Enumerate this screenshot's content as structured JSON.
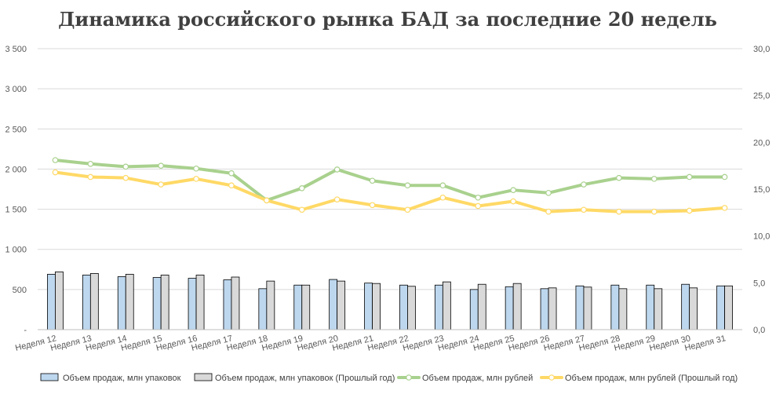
{
  "chart_data": {
    "type": "bar",
    "title": "Динамика российского рынка БАД за последние 20 недель",
    "categories": [
      "Неделя 12",
      "Неделя 13",
      "Неделя 14",
      "Неделя 15",
      "Неделя 16",
      "Неделя 17",
      "Неделя 18",
      "Неделя 19",
      "Неделя 20",
      "Неделя 21",
      "Неделя 22",
      "Неделя 23",
      "Неделя 24",
      "Неделя 25",
      "Неделя 26",
      "Неделя 27",
      "Неделя 28",
      "Неделя 29",
      "Неделя 30",
      "Неделя 31"
    ],
    "y_left": {
      "ylim": [
        0,
        3500
      ],
      "ticks": [
        0,
        500,
        1000,
        1500,
        2000,
        2500,
        3000,
        3500
      ],
      "tick_labels": [
        "-",
        "500",
        "1 000",
        "1 500",
        "2 000",
        "2 500",
        "3 000",
        "3 500"
      ]
    },
    "y_right": {
      "ylim": [
        0,
        30
      ],
      "ticks": [
        0,
        5,
        10,
        15,
        20,
        25,
        30
      ],
      "tick_labels": [
        "0,0",
        "5,0",
        "10,0",
        "15,0",
        "20,0",
        "25,0",
        "30,0"
      ]
    },
    "grid": true,
    "legend_position": "bottom",
    "series": [
      {
        "name": "Объем продаж, млн упаковок",
        "type": "bar",
        "axis": "left",
        "color": "#bdd7ee",
        "values": [
          690,
          680,
          660,
          650,
          640,
          620,
          510,
          555,
          625,
          580,
          555,
          555,
          500,
          535,
          510,
          545,
          555,
          555,
          565,
          545
        ]
      },
      {
        "name": "Объем продаж, млн упаковок (Прошлый год)",
        "type": "bar",
        "axis": "left",
        "color": "#d9d9d9",
        "values": [
          720,
          700,
          690,
          680,
          680,
          655,
          605,
          555,
          605,
          575,
          540,
          595,
          565,
          575,
          520,
          530,
          510,
          510,
          520,
          545
        ]
      },
      {
        "name": "Объем продаж, млн рублей",
        "type": "line",
        "axis": "right",
        "color": "#a9d18e",
        "values": [
          18.1,
          17.7,
          17.4,
          17.5,
          17.2,
          16.7,
          13.8,
          15.1,
          17.1,
          15.9,
          15.4,
          15.4,
          14.1,
          14.9,
          14.6,
          15.5,
          16.2,
          16.1,
          16.3,
          16.3
        ]
      },
      {
        "name": "Объем продаж, млн рублей (Прошлый год)",
        "type": "line",
        "axis": "right",
        "color": "#ffd966",
        "values": [
          16.8,
          16.3,
          16.2,
          15.5,
          16.1,
          15.4,
          13.8,
          12.8,
          13.9,
          13.3,
          12.8,
          14.1,
          13.2,
          13.7,
          12.6,
          12.8,
          12.6,
          12.6,
          12.7,
          13.0
        ]
      }
    ]
  }
}
